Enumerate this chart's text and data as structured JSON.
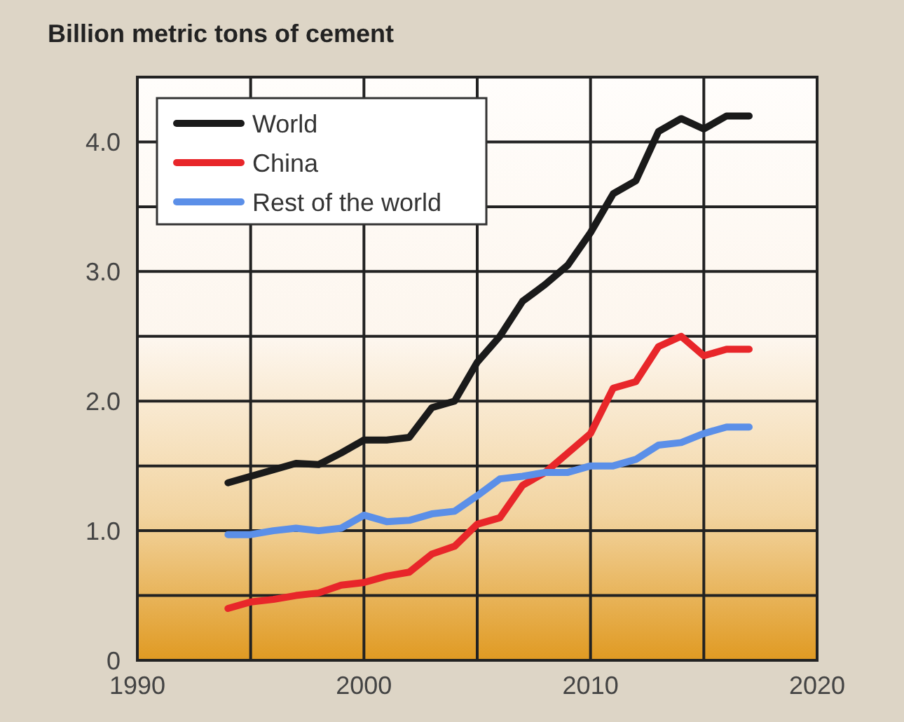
{
  "chart_data": {
    "type": "line",
    "ylabel": "Billion metric tons of cement",
    "x": [
      1994,
      1995,
      1996,
      1997,
      1998,
      1999,
      2000,
      2001,
      2002,
      2003,
      2004,
      2005,
      2006,
      2007,
      2008,
      2009,
      2010,
      2011,
      2012,
      2013,
      2014,
      2015,
      2016,
      2017
    ],
    "series": [
      {
        "name": "World",
        "color": "#1a1a1a",
        "values": [
          1.37,
          1.42,
          1.47,
          1.52,
          1.51,
          1.6,
          1.7,
          1.7,
          1.72,
          1.95,
          2.0,
          2.3,
          2.5,
          2.77,
          2.9,
          3.05,
          3.3,
          3.6,
          3.7,
          4.08,
          4.18,
          4.1,
          4.2,
          4.2
        ]
      },
      {
        "name": "China",
        "color": "#e8262a",
        "values": [
          0.4,
          0.45,
          0.47,
          0.5,
          0.52,
          0.58,
          0.6,
          0.65,
          0.68,
          0.82,
          0.88,
          1.05,
          1.1,
          1.35,
          1.45,
          1.6,
          1.75,
          2.1,
          2.15,
          2.42,
          2.5,
          2.35,
          2.4,
          2.4
        ]
      },
      {
        "name": "Rest of the world",
        "color": "#5b8fe8",
        "values": [
          0.97,
          0.97,
          1.0,
          1.02,
          1.0,
          1.02,
          1.12,
          1.07,
          1.08,
          1.13,
          1.15,
          1.27,
          1.4,
          1.42,
          1.45,
          1.45,
          1.5,
          1.5,
          1.55,
          1.66,
          1.68,
          1.75,
          1.8,
          1.8
        ]
      }
    ],
    "xlim": [
      1990,
      2020
    ],
    "xticks": [
      1990,
      {
        "value": 1995,
        "label": null
      },
      2000,
      {
        "value": 2005,
        "label": null
      },
      2010,
      {
        "value": 2015,
        "label": null
      },
      2020
    ],
    "ylim": [
      0,
      4.5
    ],
    "yticks": [
      {
        "value": 0,
        "label": "0"
      },
      {
        "value": 0.5,
        "label": null
      },
      {
        "value": 1,
        "label": "1.0"
      },
      {
        "value": 1.5,
        "label": null
      },
      {
        "value": 2,
        "label": "2.0"
      },
      {
        "value": 2.5,
        "label": null
      },
      {
        "value": 3,
        "label": "3.0"
      },
      {
        "value": 3.5,
        "label": null
      },
      {
        "value": 4,
        "label": "4.0"
      }
    ],
    "grid": true,
    "legend": "top left",
    "marker": "none",
    "line_style": "solid"
  }
}
